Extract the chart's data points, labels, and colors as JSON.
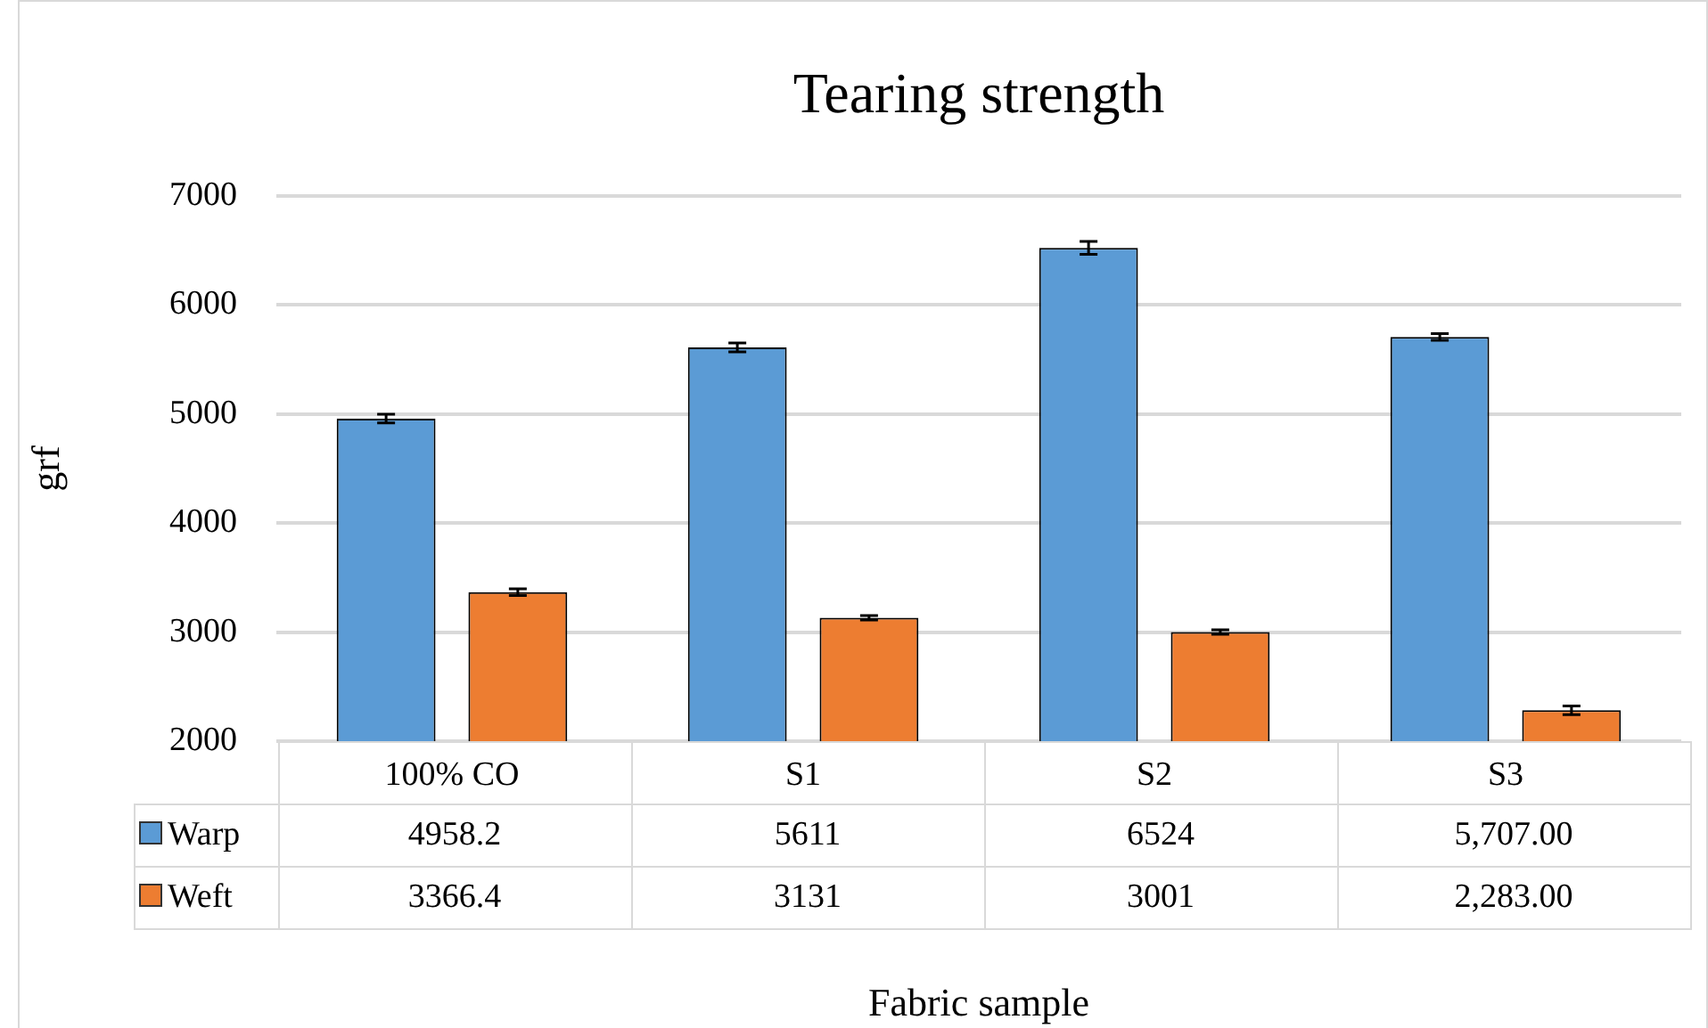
{
  "chart_data": {
    "type": "bar",
    "title": "Tearing strength",
    "xlabel": "Fabric sample",
    "ylabel": "grf",
    "categories": [
      "100% CO",
      "S1",
      "S2",
      "S3"
    ],
    "series": [
      {
        "name": "Warp",
        "color": "#5b9bd5",
        "values": [
          4958.2,
          5611,
          6524,
          5707
        ],
        "errors": [
          40,
          40,
          60,
          30
        ],
        "value_labels": [
          "4958.2",
          "5611",
          "6524",
          "5,707.00"
        ]
      },
      {
        "name": "Weft",
        "color": "#ed7d31",
        "values": [
          3366.4,
          3131,
          3001,
          2283
        ],
        "errors": [
          30,
          20,
          20,
          40
        ],
        "value_labels": [
          "3366.4",
          "3131",
          "3001",
          "2,283.00"
        ]
      }
    ],
    "ylim": [
      2000,
      7000
    ],
    "yticks": [
      2000,
      3000,
      4000,
      5000,
      6000,
      7000
    ],
    "grid": "y",
    "legend": "bottom"
  }
}
